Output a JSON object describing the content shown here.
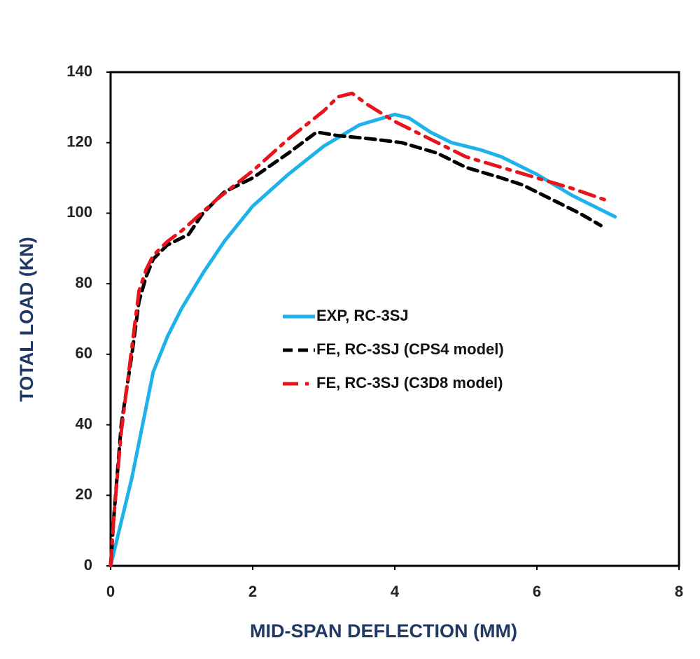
{
  "chart_data": {
    "type": "line",
    "xlabel": "MID-SPAN DEFLECTION (MM)",
    "ylabel": "TOTAL LOAD (KN)",
    "xlim": [
      0,
      8
    ],
    "ylim": [
      0,
      140
    ],
    "xticks": [
      0,
      2,
      4,
      6,
      8
    ],
    "yticks": [
      0,
      20,
      40,
      60,
      80,
      100,
      120,
      140
    ],
    "grid": false,
    "legend": "center",
    "series": [
      {
        "name": "EXP, RC-3SJ",
        "color": "#1eb2e8",
        "dash": "solid",
        "x": [
          0,
          0.3,
          0.6,
          0.8,
          1.0,
          1.3,
          1.6,
          2,
          2.5,
          3,
          3.5,
          4,
          4.2,
          4.5,
          4.8,
          5.2,
          5.5,
          6,
          6.5,
          7.1
        ],
        "values": [
          0,
          25,
          55,
          65,
          73,
          83,
          92,
          102,
          111,
          119,
          125,
          128,
          127,
          123,
          120,
          118,
          116,
          111,
          105,
          99
        ]
      },
      {
        "name": "FE, RC-3SJ (CPS4 model)",
        "color": "#000000",
        "dash": "dashed",
        "x": [
          0,
          0.05,
          0.15,
          0.3,
          0.4,
          0.5,
          0.6,
          0.8,
          1.1,
          1.3,
          1.6,
          2,
          2.5,
          2.9,
          3.2,
          3.7,
          4.1,
          4.6,
          5,
          5.5,
          5.8,
          6.2,
          6.6,
          6.9
        ],
        "values": [
          0,
          15,
          40,
          60,
          75,
          82,
          87,
          91,
          94,
          100,
          106,
          110,
          117,
          123,
          122,
          121,
          120,
          117,
          113,
          110,
          108,
          104,
          100,
          96.5
        ]
      },
      {
        "name": "FE, RC-3SJ (C3D8 model)",
        "color": "#e8141b",
        "dash": "dashdot",
        "x": [
          0,
          0.05,
          0.15,
          0.3,
          0.4,
          0.5,
          0.6,
          0.8,
          1.0,
          1.5,
          2,
          2.5,
          3,
          3.2,
          3.4,
          3.6,
          4,
          4.5,
          5,
          5.5,
          6,
          6.5,
          7
        ],
        "values": [
          0,
          15,
          38,
          62,
          78,
          84,
          88,
          92,
          95,
          104,
          112,
          121,
          129,
          133,
          134,
          131,
          126,
          121,
          116,
          113,
          110,
          107,
          103.5
        ]
      }
    ]
  }
}
